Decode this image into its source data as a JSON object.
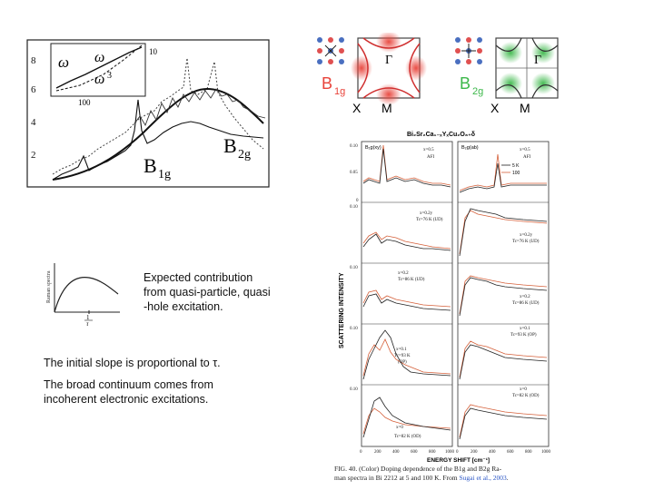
{
  "top_left_figure": {
    "inset_labels": [
      "ω",
      "ω",
      "ω",
      "3"
    ],
    "inset_tick": "100",
    "inset_right_tick": "10",
    "y_ticks": [
      "8",
      "6",
      "4",
      "2"
    ],
    "label_b1g": "B",
    "label_b1g_sub": "1g",
    "label_b2g": "B",
    "label_b2g_sub": "2g"
  },
  "small_sketch": {
    "y_axis_label": "Raman spectra",
    "x_tick_label": "1/τ",
    "x_tick_num": "1",
    "x_tick_den": "τ"
  },
  "text_blocks": {
    "expected_line1": "Expected contribution",
    "expected_line2": "from quasi-particle, quasi",
    "expected_line3": "-hole excitation.",
    "initial_slope": "The initial slope is proportional to τ.",
    "broad_line1": "The broad continuum comes from",
    "broad_line2": "incoherent electronic excitations."
  },
  "symmetry_diagrams": {
    "b1g_label": "B",
    "b1g_sub": "1g",
    "b2g_label": "B",
    "b2g_sub": "2g",
    "gamma": "Γ",
    "x_label": "X",
    "m_label": "M",
    "colors": {
      "b1g": "#e8433a",
      "b2g": "#3cb84a",
      "dot_red": "#e05050",
      "dot_blue": "#4a6fc0"
    }
  },
  "right_figure": {
    "title": "Bi₂Sr₂Ca₁₋ₓYₓCu₂O₈₊δ",
    "y_axis_label": "SCATTERING INTENSITY",
    "x_axis_label": "ENERGY SHIFT [cm⁻¹]",
    "x_ticks_left": [
      "0",
      "200",
      "400",
      "600",
      "800",
      "1000"
    ],
    "x_ticks_right": [
      "0",
      "200",
      "400",
      "600",
      "800",
      "1000"
    ],
    "y_ticks": [
      "0.10",
      "0.05",
      "0"
    ],
    "left_header": "B₁g(xy)",
    "right_header": "B₂g(ab)",
    "legend": [
      "5 K",
      "100"
    ],
    "panels_left": [
      {
        "line1": "x=0.5",
        "line2": "AFI"
      },
      {
        "line1": "x=0.2y",
        "line2": "Tc=76 K (UD)"
      },
      {
        "line1": "x=0.2",
        "line2": "Tc=86 K (UD)"
      },
      {
        "line1": "x=0.1",
        "line2": "Tc=93 K",
        "line3": "(OP)"
      },
      {
        "line1": "x=0",
        "line2": "Tc=82 K (OD)"
      }
    ],
    "panels_right": [
      {
        "line1": "x=0.5",
        "line2": "AFI"
      },
      {
        "line1": "x=0.2y",
        "line2": "Tc=76 K (UD)"
      },
      {
        "line1": "x=0.2",
        "line2": "Tc=86 K (UD)"
      },
      {
        "line1": "x=0.1",
        "line2": "Tc=93 K (OP)"
      },
      {
        "line1": "x=0",
        "line2": "Tc=82 K (OD)"
      }
    ],
    "caption_line1": "FIG. 40. (Color) Doping dependence of the B1g and B2g Ra-",
    "caption_line2_prefix": "man spectra in Bi 2212 at 5 and 100 K. From ",
    "caption_link": "Sugai et al., 2003",
    "caption_end": "."
  }
}
